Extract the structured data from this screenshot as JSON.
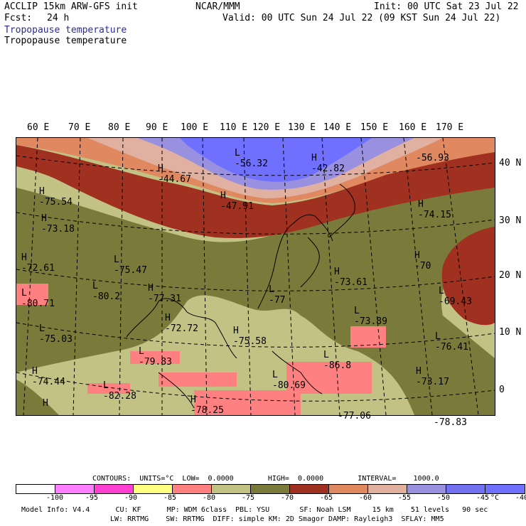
{
  "header": {
    "model_line": "ACCLIP 15km ARW-GFS init",
    "fcst_label": "Fcst:",
    "fcst_value": "24 h",
    "org": "NCAR/MMM",
    "init": "Init: 00 UTC Sat 23 Jul 22",
    "valid": "Valid: 00 UTC Sun 24 Jul 22 (09 KST Sun 24 Jul 22)",
    "field_title_blue": "Tropopause temperature",
    "field_title_black": "Tropopause temperature"
  },
  "colors": {
    "title_blue": "#2a2a9a"
  },
  "map": {
    "lon_labels": [
      "60 E",
      "70 E",
      "80 E",
      "90 E",
      "100 E",
      "110 E",
      "120 E",
      "130 E",
      "140 E",
      "150 E",
      "160 E",
      "170 E"
    ],
    "lat_labels": [
      "40 N",
      "30 N",
      "20 N",
      "10 N",
      "0"
    ],
    "highs_lows": [
      {
        "t": "L",
        "v": "-56.32"
      },
      {
        "t": "H",
        "v": "-42.82"
      },
      {
        "t": "H",
        "v": "-44.67"
      },
      {
        "t": "H",
        "v": "-47.91"
      },
      {
        "t": "",
        "v": "-56.93"
      },
      {
        "t": "H",
        "v": "-75.54"
      },
      {
        "t": "H",
        "v": "-74.15"
      },
      {
        "t": "H",
        "v": "-73.18"
      },
      {
        "t": "H",
        "v": "-72.61"
      },
      {
        "t": "L",
        "v": "-75.47"
      },
      {
        "t": "H",
        "v": "-70"
      },
      {
        "t": "L",
        "v": "-80.2"
      },
      {
        "t": "H",
        "v": "-77.31"
      },
      {
        "t": "L",
        "v": "-77"
      },
      {
        "t": "H",
        "v": "-73.61"
      },
      {
        "t": "L",
        "v": "-80.71"
      },
      {
        "t": "L",
        "v": "-69.43"
      },
      {
        "t": "H",
        "v": "-72.72"
      },
      {
        "t": "L",
        "v": "-73.89"
      },
      {
        "t": "L",
        "v": "-75.03"
      },
      {
        "t": "H",
        "v": "-75.58"
      },
      {
        "t": "L",
        "v": "-76.41"
      },
      {
        "t": "L",
        "v": "-79.83"
      },
      {
        "t": "L",
        "v": "-86.8"
      },
      {
        "t": "H",
        "v": "-74.44"
      },
      {
        "t": "H",
        "v": "-73.17"
      },
      {
        "t": "L",
        "v": "-82.28"
      },
      {
        "t": "L",
        "v": "-80.69"
      },
      {
        "t": "H",
        "v": "-78.25"
      },
      {
        "t": "",
        "v": "-77.06"
      },
      {
        "t": "H",
        "v": ""
      },
      {
        "t": "",
        "v": "-78.83"
      }
    ]
  },
  "legend": {
    "header": "CONTOURS:  UNITS=°C  LOW=  0.0000        HIGH=  0.0000        INTERVAL=    1000.0",
    "colors": [
      "#ffffff",
      "#ff80ff",
      "#ff40d0",
      "#ffff80",
      "#ff8080",
      "#c2c285",
      "#7a7a3a",
      "#a03020",
      "#e08860",
      "#e0b0a0",
      "#9a90e0",
      "#7070f0",
      "#7070ff"
    ],
    "ticks": [
      "-100",
      "-95",
      "-90",
      "-85",
      "-80",
      "-75",
      "-70",
      "-65",
      "-60",
      "-55",
      "-50",
      "-45",
      "-40",
      "°C"
    ]
  },
  "footer": {
    "line1": "Model Info: V4.4      CU: KF      MP: WDM 6class  PBL: YSU       SF: Noah LSM     15 km    51 levels   90 sec",
    "line2": "LW: RRTMG    SW: RRTMG  DIFF: simple KM: 2D Smagor DAMP: Rayleigh3  SFLAY: MM5"
  }
}
